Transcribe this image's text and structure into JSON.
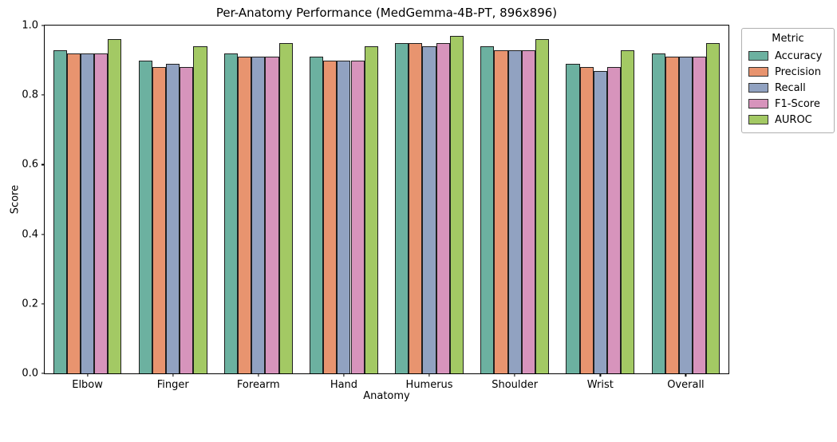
{
  "chart_data": {
    "type": "bar",
    "title": "Per-Anatomy Performance (MedGemma-4B-PT, 896x896)",
    "xlabel": "Anatomy",
    "ylabel": "Score",
    "ylim": [
      0.0,
      1.0
    ],
    "yticks": [
      0.0,
      0.2,
      0.4,
      0.6,
      0.8,
      1.0
    ],
    "categories": [
      "Elbow",
      "Finger",
      "Forearm",
      "Hand",
      "Humerus",
      "Shoulder",
      "Wrist",
      "Overall"
    ],
    "grid": false,
    "legend_title": "Metric",
    "legend_position": "outside upper right",
    "bar_edge_color": "#1f1f1f",
    "series": [
      {
        "name": "Accuracy",
        "color": "#6cb1a0",
        "values": [
          0.93,
          0.9,
          0.92,
          0.91,
          0.95,
          0.94,
          0.89,
          0.92
        ]
      },
      {
        "name": "Precision",
        "color": "#e8946f",
        "values": [
          0.92,
          0.88,
          0.91,
          0.9,
          0.95,
          0.93,
          0.88,
          0.91
        ]
      },
      {
        "name": "Recall",
        "color": "#91a2c1",
        "values": [
          0.92,
          0.89,
          0.91,
          0.9,
          0.94,
          0.93,
          0.87,
          0.91
        ]
      },
      {
        "name": "F1-Score",
        "color": "#d794bc",
        "values": [
          0.92,
          0.88,
          0.91,
          0.9,
          0.95,
          0.93,
          0.88,
          0.91
        ]
      },
      {
        "name": "AUROC",
        "color": "#a3c964",
        "values": [
          0.96,
          0.94,
          0.95,
          0.94,
          0.97,
          0.96,
          0.93,
          0.95
        ]
      }
    ]
  }
}
